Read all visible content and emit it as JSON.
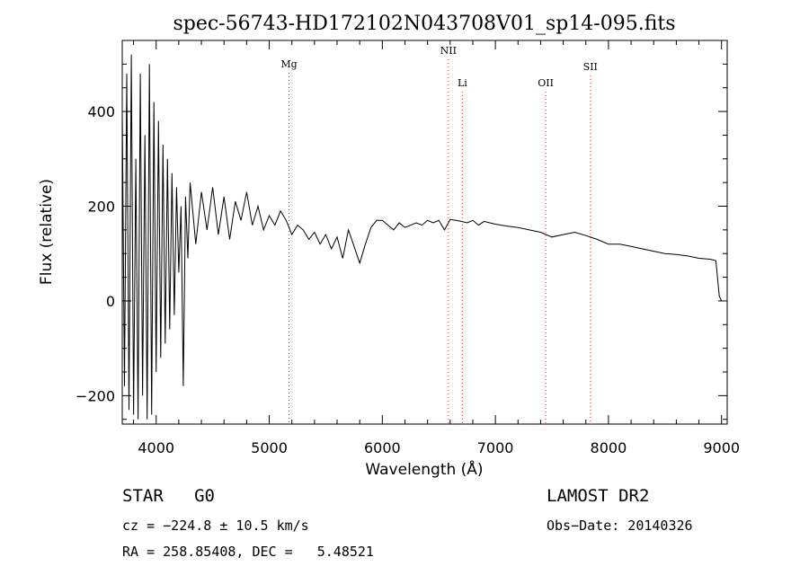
{
  "chart_data": {
    "type": "line",
    "title": "spec-56743-HD172102N043708V01_sp14-095.fits",
    "xlabel": "Wavelength (Å)",
    "ylabel": "Flux (relative)",
    "xlim": [
      3700,
      9050
    ],
    "ylim": [
      -260,
      550
    ],
    "x_ticks": [
      4000,
      5000,
      6000,
      7000,
      8000,
      9000
    ],
    "x_tick_labels": [
      "4000",
      "5000",
      "6000",
      "7000",
      "8000",
      "9000"
    ],
    "y_ticks": [
      -200,
      0,
      200,
      400
    ],
    "y_tick_labels": [
      "−200",
      "0",
      "200",
      "400"
    ],
    "grid": false,
    "series": [
      {
        "x": [
          3700,
          3720,
          3740,
          3760,
          3780,
          3800,
          3820,
          3840,
          3860,
          3880,
          3900,
          3920,
          3940,
          3960,
          3980,
          4000,
          4020,
          4040,
          4060,
          4080,
          4100,
          4120,
          4140,
          4160,
          4180,
          4200,
          4220,
          4240,
          4260,
          4280,
          4300,
          4350,
          4400,
          4450,
          4500,
          4550,
          4600,
          4650,
          4700,
          4750,
          4800,
          4850,
          4900,
          4950,
          5000,
          5050,
          5100,
          5150,
          5200,
          5250,
          5300,
          5350,
          5400,
          5450,
          5500,
          5550,
          5600,
          5650,
          5700,
          5750,
          5800,
          5850,
          5900,
          5950,
          6000,
          6050,
          6100,
          6150,
          6200,
          6250,
          6300,
          6350,
          6400,
          6450,
          6500,
          6550,
          6600,
          6650,
          6700,
          6750,
          6800,
          6850,
          6900,
          6950,
          7000,
          7100,
          7200,
          7300,
          7400,
          7500,
          7600,
          7700,
          7800,
          7900,
          8000,
          8100,
          8200,
          8300,
          8400,
          8500,
          8600,
          8700,
          8800,
          8900,
          8950,
          8980,
          9000
        ],
        "y": [
          400,
          -180,
          480,
          -230,
          520,
          -240,
          300,
          -250,
          480,
          -200,
          350,
          -250,
          500,
          -240,
          420,
          -150,
          380,
          -120,
          330,
          -90,
          300,
          -60,
          270,
          -30,
          240,
          60,
          200,
          -180,
          220,
          90,
          250,
          120,
          230,
          150,
          240,
          140,
          220,
          130,
          210,
          170,
          230,
          160,
          200,
          150,
          180,
          160,
          190,
          170,
          140,
          160,
          150,
          130,
          145,
          120,
          140,
          110,
          135,
          90,
          150,
          115,
          80,
          120,
          155,
          170,
          170,
          160,
          150,
          165,
          155,
          160,
          165,
          160,
          170,
          165,
          170,
          150,
          172,
          170,
          168,
          165,
          170,
          160,
          168,
          165,
          162,
          158,
          155,
          150,
          145,
          135,
          140,
          145,
          138,
          130,
          120,
          120,
          115,
          110,
          105,
          100,
          98,
          95,
          90,
          88,
          85,
          10,
          0
        ],
        "name": ""
      }
    ],
    "line_markers": [
      {
        "label": "Mg",
        "x": 5175
      },
      {
        "label": "NII",
        "x": 6584
      },
      {
        "label": "Li",
        "x": 6708
      },
      {
        "label": "OII",
        "x": 7445
      },
      {
        "label": "SII",
        "x": 7840
      }
    ]
  },
  "footer": {
    "object": "STAR   G0",
    "cz": "cz = −224.8 ± 10.5 km/s",
    "coords": "RA = 258.85408, DEC =   5.48521",
    "survey": "LAMOST DR2",
    "obs_date": "Obs−Date: 20140326"
  },
  "colors": {
    "line": "#000000",
    "marker": "#d04040",
    "frame": "#000000"
  }
}
